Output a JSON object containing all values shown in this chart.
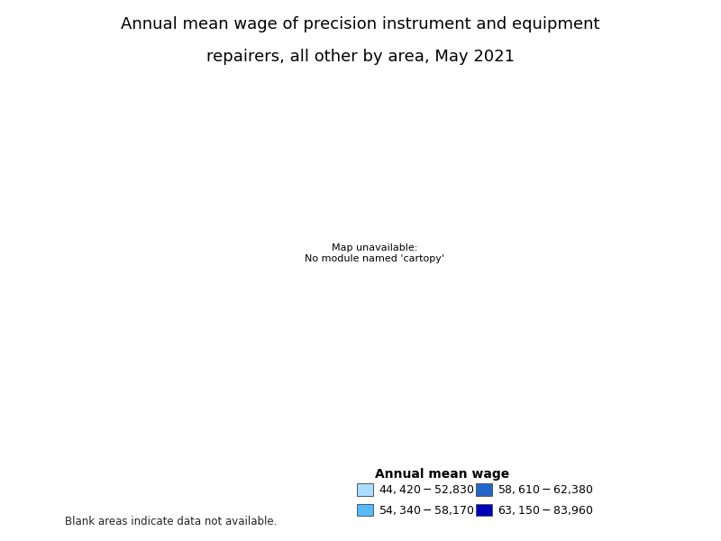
{
  "title_line1": "Annual mean wage of precision instrument and equipment",
  "title_line2": "repairers, all other by area, May 2021",
  "legend_title": "Annual mean wage",
  "legend_entries": [
    {
      "label": "$44,420 - $52,830",
      "color": "#aaddff"
    },
    {
      "label": "$54,340 - $58,170",
      "color": "#55bbff"
    },
    {
      "label": "$58,610 - $62,380",
      "color": "#2266cc"
    },
    {
      "label": "$63,150 - $83,960",
      "color": "#0000bb"
    }
  ],
  "blank_note": "Blank areas indicate data not available.",
  "title_fontsize": 13,
  "legend_fontsize": 9,
  "background_color": "#ffffff",
  "figsize": [
    8.0,
    6.0
  ],
  "dpi": 100
}
